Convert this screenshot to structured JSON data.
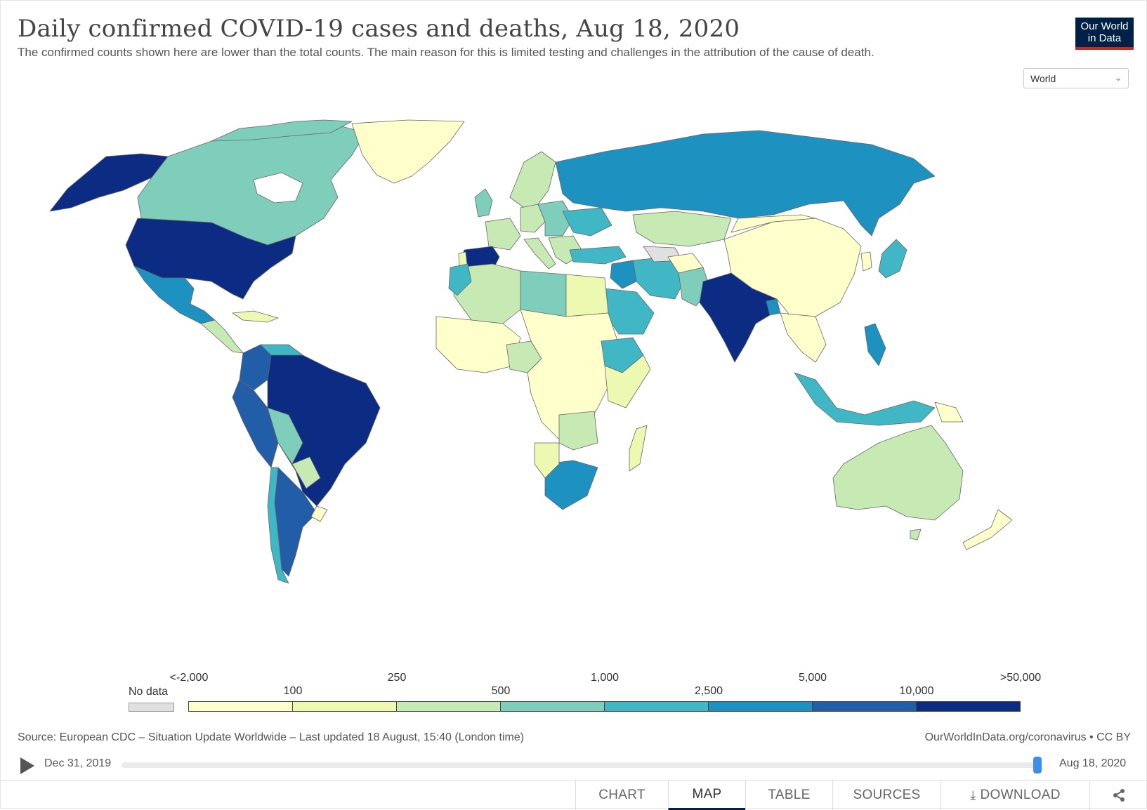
{
  "header": {
    "title": "Daily confirmed COVID-19 cases and deaths, Aug 18, 2020",
    "subtitle": "The confirmed counts shown here are lower than the total counts. The main reason for this is limited testing and challenges in the attribution of the cause of death.",
    "logo_line1": "Our World",
    "logo_line2": "in Data"
  },
  "region_select": {
    "value": "World"
  },
  "legend": {
    "no_data_label": "No data",
    "ticks_top": [
      "<-2,000",
      "250",
      "1,000",
      "5,000",
      ">50,000"
    ],
    "ticks_bottom": [
      "100",
      "500",
      "2,500",
      "10,000"
    ],
    "colors": [
      "#ffffcc",
      "#edf8b1",
      "#c7e9b4",
      "#7fcdbb",
      "#41b6c4",
      "#1d91c0",
      "#225ea8",
      "#0c2c84"
    ],
    "no_data_color": "#e0e0e0"
  },
  "source": {
    "text": "Source: European CDC – Situation Update Worldwide – Last updated 18 August, 15:40 (London time)",
    "credit": "OurWorldInData.org/coronavirus • CC BY"
  },
  "timeline": {
    "start_label": "Dec 31, 2019",
    "end_label": "Aug 18, 2020",
    "position": 1.0
  },
  "tabs": [
    {
      "label": "CHART",
      "active": false
    },
    {
      "label": "MAP",
      "active": true
    },
    {
      "label": "TABLE",
      "active": false
    },
    {
      "label": "SOURCES",
      "active": false
    },
    {
      "label": "DOWNLOAD",
      "active": false
    }
  ],
  "icons": {
    "download": "download-icon",
    "share": "share-icon",
    "play": "play-icon",
    "chevron": "chevron-down-icon"
  }
}
